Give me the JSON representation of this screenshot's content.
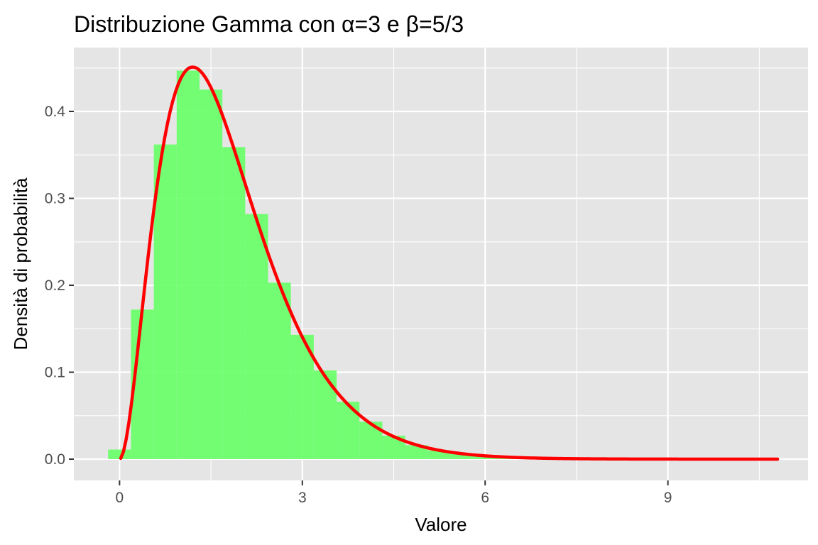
{
  "chart_data": {
    "type": "histogram-with-density",
    "title": "Distribuzione Gamma con α=3 e β=5/3",
    "xlabel": "Valore",
    "ylabel": "Densità di probabilità",
    "xlim": [
      -0.75,
      11.3
    ],
    "ylim": [
      -0.0245,
      0.4735
    ],
    "x_ticks": [
      {
        "value": 0,
        "label": "0"
      },
      {
        "value": 3,
        "label": "3"
      },
      {
        "value": 6,
        "label": "6"
      },
      {
        "value": 9,
        "label": "9"
      }
    ],
    "y_ticks": [
      {
        "value": 0.0,
        "label": "0.0"
      },
      {
        "value": 0.1,
        "label": "0.1"
      },
      {
        "value": 0.2,
        "label": "0.2"
      },
      {
        "value": 0.3,
        "label": "0.3"
      },
      {
        "value": 0.4,
        "label": "0.4"
      }
    ],
    "grid": true,
    "legend": "none",
    "histogram": {
      "color": "#66ff66",
      "bin_width": 0.375,
      "bins": [
        {
          "x0": -0.1875,
          "density": 0.011
        },
        {
          "x0": 0.1875,
          "density": 0.172
        },
        {
          "x0": 0.5625,
          "density": 0.362
        },
        {
          "x0": 0.9375,
          "density": 0.447
        },
        {
          "x0": 1.3125,
          "density": 0.425
        },
        {
          "x0": 1.6875,
          "density": 0.359
        },
        {
          "x0": 2.0625,
          "density": 0.282
        },
        {
          "x0": 2.4375,
          "density": 0.203
        },
        {
          "x0": 2.8125,
          "density": 0.143
        },
        {
          "x0": 3.1875,
          "density": 0.102
        },
        {
          "x0": 3.5625,
          "density": 0.066
        },
        {
          "x0": 3.9375,
          "density": 0.043
        },
        {
          "x0": 4.3125,
          "density": 0.027
        },
        {
          "x0": 4.6875,
          "density": 0.016
        },
        {
          "x0": 5.0625,
          "density": 0.01
        },
        {
          "x0": 5.4375,
          "density": 0.006
        },
        {
          "x0": 5.8125,
          "density": 0.004
        },
        {
          "x0": 6.1875,
          "density": 0.002
        },
        {
          "x0": 6.5625,
          "density": 0.001
        },
        {
          "x0": 6.9375,
          "density": 0.001
        }
      ]
    },
    "density_curve": {
      "color": "#ff0000",
      "alpha": 3,
      "rate": 1.6667,
      "x_range": [
        0.02,
        10.8
      ]
    }
  }
}
